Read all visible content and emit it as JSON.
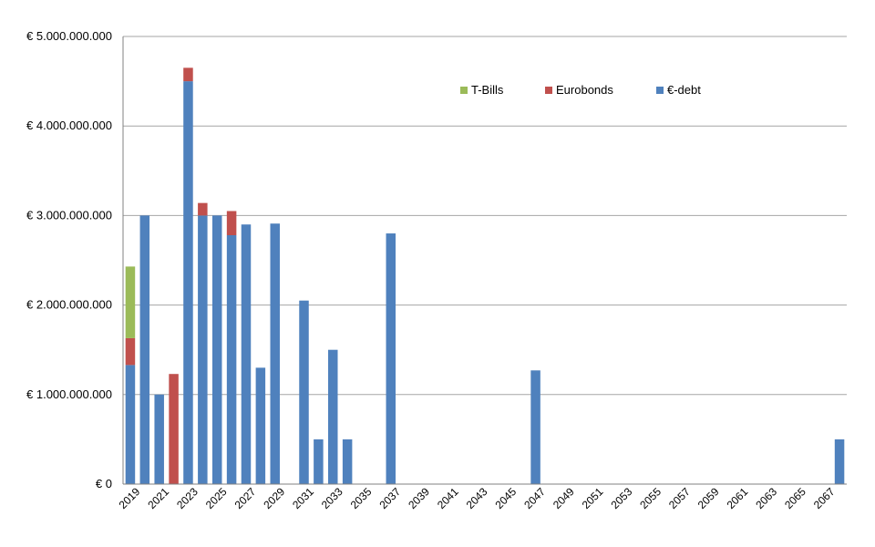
{
  "chart_data": {
    "type": "bar",
    "stacked": true,
    "title": "",
    "xlabel": "",
    "ylabel": "",
    "ylim": [
      0,
      5000000000
    ],
    "yticks": [
      0,
      1000000000,
      2000000000,
      3000000000,
      4000000000,
      5000000000
    ],
    "ytick_labels": [
      "€ 0",
      "€ 1.000.000.000",
      "€ 2.000.000.000",
      "€ 3.000.000.000",
      "€ 4.000.000.000",
      "€ 5.000.000.000"
    ],
    "grid": true,
    "legend_position": "top-right",
    "categories": [
      2019,
      2020,
      2021,
      2022,
      2023,
      2024,
      2025,
      2026,
      2027,
      2028,
      2029,
      2030,
      2031,
      2032,
      2033,
      2034,
      2035,
      2036,
      2037,
      2038,
      2039,
      2040,
      2041,
      2042,
      2043,
      2044,
      2045,
      2046,
      2047,
      2048,
      2049,
      2050,
      2051,
      2052,
      2053,
      2054,
      2055,
      2056,
      2057,
      2058,
      2059,
      2060,
      2061,
      2062,
      2063,
      2064,
      2065,
      2066,
      2067,
      2068
    ],
    "xtick_labels": [
      "2019",
      "2021",
      "2023",
      "2025",
      "2027",
      "2029",
      "2031",
      "2033",
      "2035",
      "2037",
      "2039",
      "2041",
      "2043",
      "2045",
      "2047",
      "2049",
      "2051",
      "2053",
      "2055",
      "2057",
      "2059",
      "2061",
      "2063",
      "2065",
      "2067"
    ],
    "series": [
      {
        "name": "€-debt",
        "color": "#4F81BD",
        "values": [
          1330000000,
          3000000000,
          1000000000,
          0,
          4500000000,
          3000000000,
          3000000000,
          2780000000,
          2900000000,
          1300000000,
          2910000000,
          0,
          2050000000,
          500000000,
          1500000000,
          500000000,
          0,
          0,
          2800000000,
          0,
          0,
          0,
          0,
          0,
          0,
          0,
          0,
          0,
          1270000000,
          0,
          0,
          0,
          0,
          0,
          0,
          0,
          0,
          0,
          0,
          0,
          0,
          0,
          0,
          0,
          0,
          0,
          0,
          0,
          0,
          500000000
        ]
      },
      {
        "name": "Eurobonds",
        "color": "#C0504D",
        "values": [
          300000000,
          0,
          0,
          1230000000,
          150000000,
          140000000,
          0,
          270000000,
          0,
          0,
          0,
          0,
          0,
          0,
          0,
          0,
          0,
          0,
          0,
          0,
          0,
          0,
          0,
          0,
          0,
          0,
          0,
          0,
          0,
          0,
          0,
          0,
          0,
          0,
          0,
          0,
          0,
          0,
          0,
          0,
          0,
          0,
          0,
          0,
          0,
          0,
          0,
          0,
          0,
          0
        ]
      },
      {
        "name": "T-Bills",
        "color": "#9BBB59",
        "values": [
          800000000,
          0,
          0,
          0,
          0,
          0,
          0,
          0,
          0,
          0,
          0,
          0,
          0,
          0,
          0,
          0,
          0,
          0,
          0,
          0,
          0,
          0,
          0,
          0,
          0,
          0,
          0,
          0,
          0,
          0,
          0,
          0,
          0,
          0,
          0,
          0,
          0,
          0,
          0,
          0,
          0,
          0,
          0,
          0,
          0,
          0,
          0,
          0,
          0,
          0
        ]
      }
    ],
    "legend_order": [
      "T-Bills",
      "Eurobonds",
      "€-debt"
    ]
  }
}
